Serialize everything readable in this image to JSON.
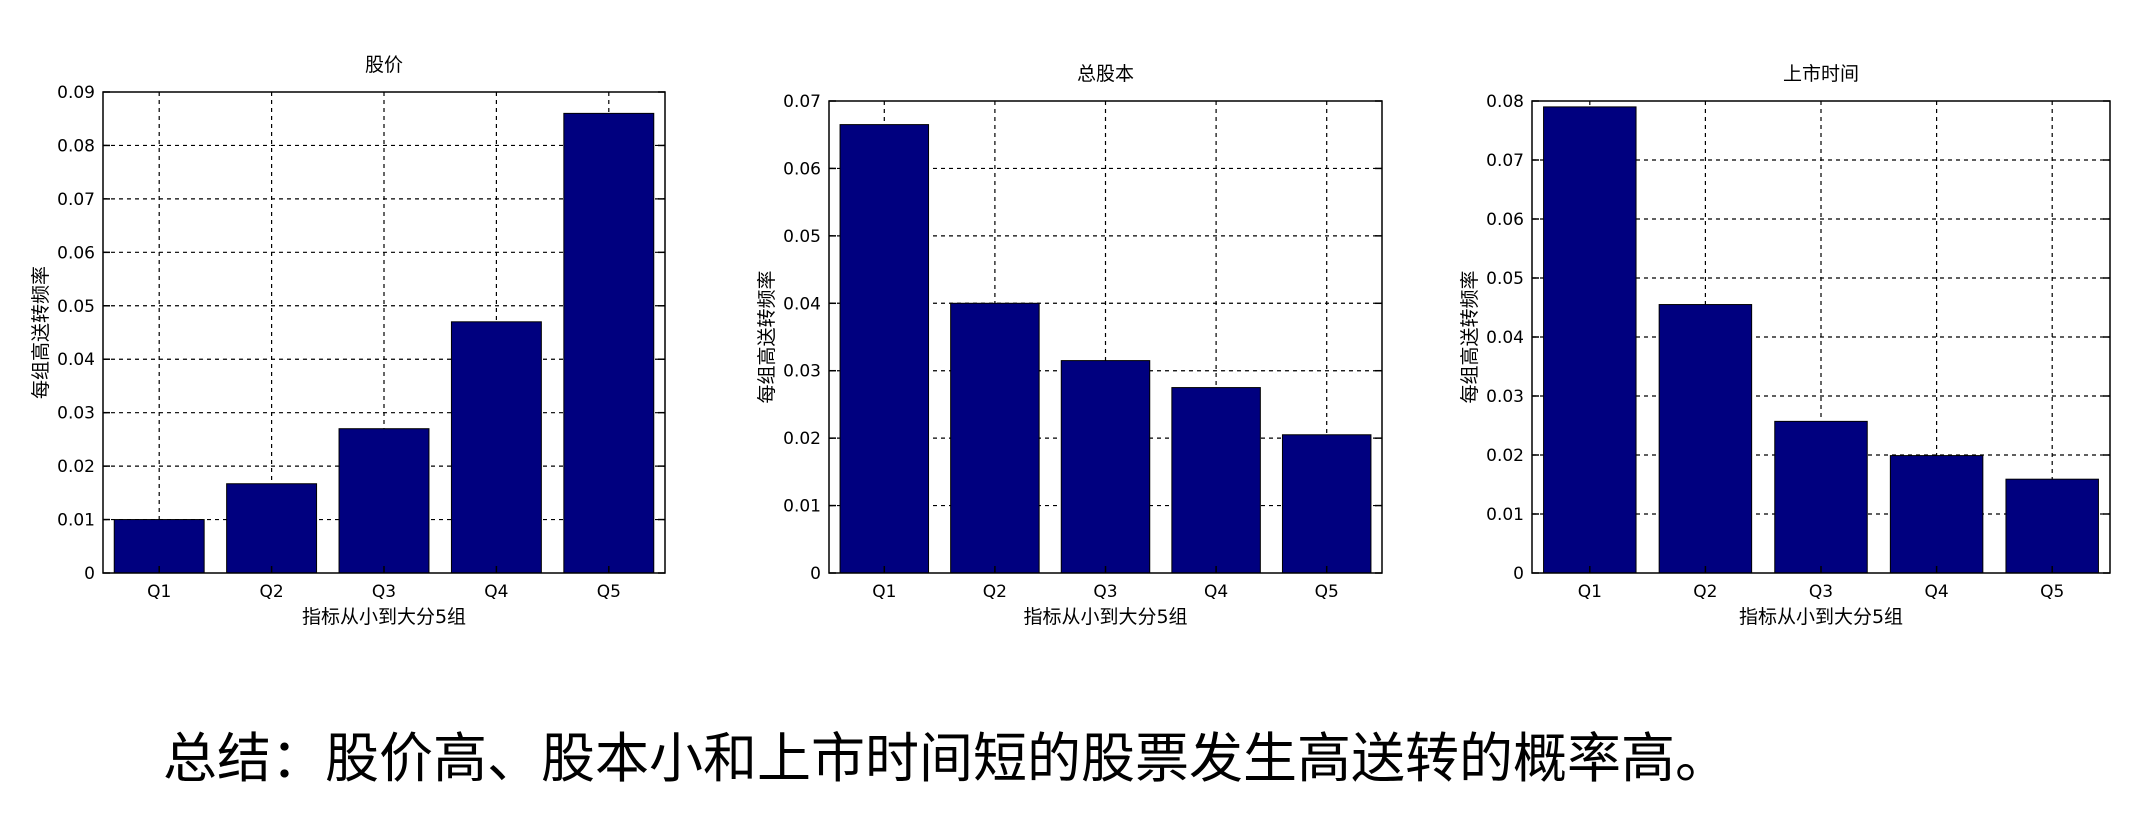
{
  "colors": {
    "bar": "#00007f",
    "axis": "#000000",
    "grid": "#000000",
    "text": "#000000",
    "background": "#ffffff"
  },
  "chart_data": [
    {
      "type": "bar",
      "title": "股价",
      "categories": [
        "Q1",
        "Q2",
        "Q3",
        "Q4",
        "Q5"
      ],
      "values": [
        0.01,
        0.0167,
        0.027,
        0.047,
        0.086
      ],
      "xlabel": "指标从小到大分5组",
      "ylabel": "每组高送转频率",
      "ylim": [
        0,
        0.09
      ],
      "yticks": [
        "0",
        "0.01",
        "0.02",
        "0.03",
        "0.04",
        "0.05",
        "0.06",
        "0.07",
        "0.08",
        "0.09"
      ],
      "grid": true
    },
    {
      "type": "bar",
      "title": "总股本",
      "categories": [
        "Q1",
        "Q2",
        "Q3",
        "Q4",
        "Q5"
      ],
      "values": [
        0.0665,
        0.04,
        0.0315,
        0.0275,
        0.0205
      ],
      "xlabel": "指标从小到大分5组",
      "ylabel": "每组高送转频率",
      "ylim": [
        0,
        0.07
      ],
      "yticks": [
        "0",
        "0.01",
        "0.02",
        "0.03",
        "0.04",
        "0.05",
        "0.06",
        "0.07"
      ],
      "grid": true
    },
    {
      "type": "bar",
      "title": "上市时间",
      "categories": [
        "Q1",
        "Q2",
        "Q3",
        "Q4",
        "Q5"
      ],
      "values": [
        0.079,
        0.0455,
        0.0257,
        0.0199,
        0.0159
      ],
      "xlabel": "指标从小到大分5组",
      "ylabel": "每组高送转频率",
      "ylim": [
        0,
        0.08
      ],
      "yticks": [
        "0",
        "0.01",
        "0.02",
        "0.03",
        "0.04",
        "0.05",
        "0.06",
        "0.07",
        "0.08"
      ],
      "grid": true
    }
  ],
  "summary": "总结：股价高、股本小和上市时间短的股票发生高送转的概率高。"
}
